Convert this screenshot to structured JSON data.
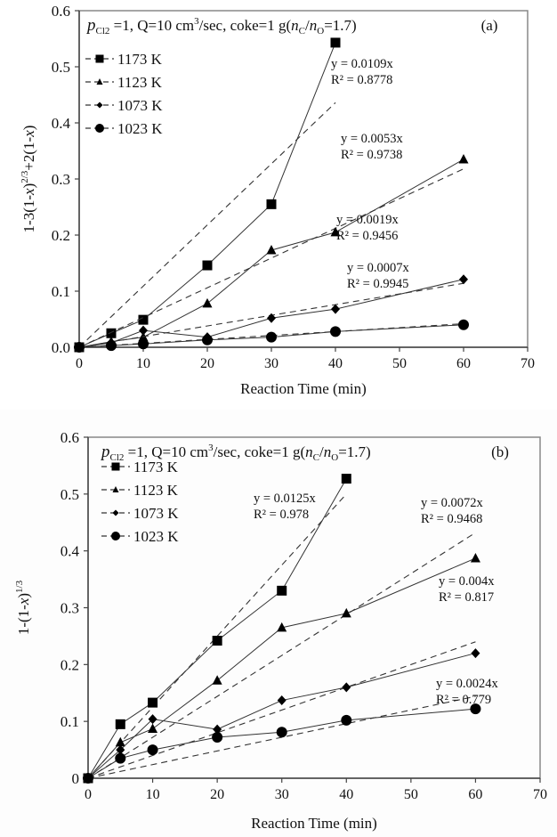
{
  "chart_data": [
    {
      "type": "line",
      "panel_label": "(a)",
      "annotation_parts": {
        "p": "p",
        "p_sub": "Cl2",
        "rest1": " =1, Q=10 cm",
        "sup": "3",
        "rest2": "/sec, coke=1 g(",
        "nc": "n",
        "nc_sub": "C",
        "slash": "/",
        "no": "n",
        "no_sub": "O",
        "rest3": "=1.7)"
      },
      "ylabel": "1-3(1-x)^2/3+2(1-x)",
      "ylabel_parts": {
        "a": "1-3(1-",
        "x1": "x",
        "b": ")",
        "sup": "2/3",
        "c": "+2(1-",
        "x2": "x",
        "d": ")"
      },
      "xlabel": "Reaction Time (min)",
      "xlim": [
        0,
        70
      ],
      "ylim": [
        0,
        0.6
      ],
      "xticks": [
        "0",
        "10",
        "20",
        "30",
        "40",
        "50",
        "60",
        "70"
      ],
      "yticks": [
        "0.0",
        "0.1",
        "0.2",
        "0.3",
        "0.4",
        "0.5",
        "0.6"
      ],
      "grid": false,
      "legend_position": "top-left",
      "series": [
        {
          "name": "1173 K",
          "marker": "square",
          "x": [
            0,
            5,
            10,
            20,
            30,
            40
          ],
          "y": [
            0,
            0.025,
            0.049,
            0.146,
            0.255,
            0.543
          ],
          "fit_slope": 0.0109,
          "fit_xmax": 40,
          "eq": "y = 0.0109x",
          "r2": "R² = 0.8778"
        },
        {
          "name": "1123 K",
          "marker": "triangle",
          "x": [
            0,
            5,
            10,
            20,
            30,
            40,
            60
          ],
          "y": [
            0,
            0.01,
            0.018,
            0.078,
            0.173,
            0.205,
            0.335
          ],
          "fit_slope": 0.0053,
          "fit_xmax": 60,
          "eq": "y = 0.0053x",
          "r2": "R² = 0.9738"
        },
        {
          "name": "1073 K",
          "marker": "diamond",
          "x": [
            0,
            5,
            10,
            20,
            30,
            40,
            60
          ],
          "y": [
            0,
            0.008,
            0.03,
            0.018,
            0.052,
            0.068,
            0.121
          ],
          "fit_slope": 0.0019,
          "fit_xmax": 60,
          "eq": "y = 0.0019x",
          "r2": "R² = 0.9456"
        },
        {
          "name": "1023 K",
          "marker": "circle",
          "x": [
            0,
            5,
            10,
            20,
            30,
            40,
            60
          ],
          "y": [
            0,
            0.003,
            0.006,
            0.013,
            0.018,
            0.028,
            0.04
          ],
          "fit_slope": 0.0007,
          "fit_xmax": 60,
          "eq": "y = 0.0007x",
          "r2": "R² = 0.9945"
        }
      ]
    },
    {
      "type": "line",
      "panel_label": "(b)",
      "annotation_parts": {
        "p": "p",
        "p_sub": "Cl2",
        "rest1": " =1, Q=10 cm",
        "sup": "3",
        "rest2": "/sec, coke=1 g(",
        "nc": "n",
        "nc_sub": "C",
        "slash": "/",
        "no": "n",
        "no_sub": "O",
        "rest3": "=1.7)"
      },
      "ylabel": "1-(1-x)^1/3",
      "ylabel_parts": {
        "a": "1-(1-",
        "x1": "x",
        "b": ")",
        "sup": "1/3"
      },
      "xlabel": "Reaction Time (min)",
      "xlim": [
        0,
        70
      ],
      "ylim": [
        0,
        0.6
      ],
      "xticks": [
        "0",
        "10",
        "20",
        "30",
        "40",
        "50",
        "60",
        "70"
      ],
      "yticks": [
        "0",
        "0.1",
        "0.2",
        "0.3",
        "0.4",
        "0.5",
        "0.6"
      ],
      "grid": false,
      "legend_position": "top-left",
      "series": [
        {
          "name": "1173 K",
          "marker": "square",
          "x": [
            0,
            5,
            10,
            20,
            30,
            40
          ],
          "y": [
            0,
            0.095,
            0.133,
            0.242,
            0.33,
            0.527
          ],
          "fit_slope": 0.0125,
          "fit_xmax": 40,
          "eq": "y = 0.0125x",
          "r2": "R² = 0.978"
        },
        {
          "name": "1123 K",
          "marker": "triangle",
          "x": [
            0,
            5,
            10,
            20,
            30,
            40,
            60
          ],
          "y": [
            0,
            0.063,
            0.087,
            0.172,
            0.265,
            0.29,
            0.387
          ],
          "fit_slope": 0.0072,
          "fit_xmax": 60,
          "eq": "y = 0.0072x",
          "r2": "R² = 0.9468"
        },
        {
          "name": "1073 K",
          "marker": "diamond",
          "x": [
            0,
            5,
            10,
            20,
            30,
            40,
            60
          ],
          "y": [
            0,
            0.05,
            0.104,
            0.086,
            0.137,
            0.16,
            0.22
          ],
          "fit_slope": 0.004,
          "fit_xmax": 60,
          "eq": "y = 0.004x",
          "r2": "R² = 0.817"
        },
        {
          "name": "1023 K",
          "marker": "circle",
          "x": [
            0,
            5,
            10,
            20,
            30,
            40,
            60
          ],
          "y": [
            0,
            0.035,
            0.05,
            0.072,
            0.081,
            0.102,
            0.122
          ],
          "fit_slope": 0.0024,
          "fit_xmax": 60,
          "eq": "y = 0.0024x",
          "r2": "R² = 0.779"
        }
      ]
    }
  ]
}
